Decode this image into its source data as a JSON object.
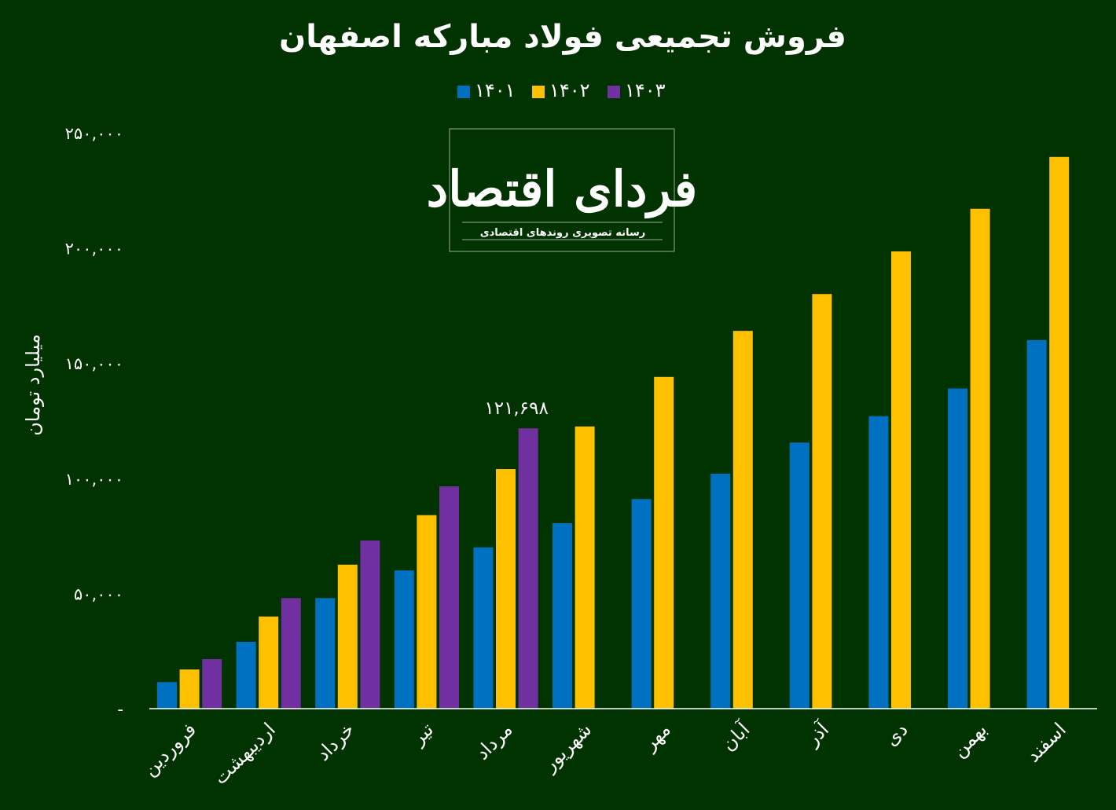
{
  "logo": {
    "name": "فردای اقتصاد",
    "tagline": "رسانه تصویری روندهای اقتصادی"
  },
  "chart_data": {
    "type": "bar",
    "title": "فروش تجمیعی فولاد مبارکه اصفهان",
    "ylabel": "میلیارد تومان",
    "xlabel": "",
    "ylim": [
      0,
      250000
    ],
    "yticks": [
      0,
      50000,
      100000,
      150000,
      200000,
      250000
    ],
    "ytick_labels": [
      "-",
      "۵۰,۰۰۰",
      "۱۰۰,۰۰۰",
      "۱۵۰,۰۰۰",
      "۲۰۰,۰۰۰",
      "۲۵۰,۰۰۰"
    ],
    "legend_position": "top-center",
    "grid": false,
    "categories": [
      "فروردین",
      "اردیبهشت",
      "خرداد",
      "تیر",
      "مرداد",
      "شهریور",
      "مهر",
      "آبان",
      "آذر",
      "دی",
      "بهمن",
      "اسفند"
    ],
    "series": [
      {
        "name": "۱۴۰۱",
        "color": "#0070C0",
        "values": [
          11500,
          29000,
          48000,
          60000,
          70000,
          80500,
          91000,
          102000,
          115500,
          127000,
          139000,
          160000
        ]
      },
      {
        "name": "۱۴۰۲",
        "color": "#FFC000",
        "values": [
          17000,
          40000,
          62500,
          84000,
          104000,
          122500,
          144000,
          164000,
          180000,
          198500,
          217000,
          239500
        ]
      },
      {
        "name": "۱۴۰۳",
        "color": "#7030A0",
        "values": [
          21500,
          48000,
          73000,
          96500,
          121698,
          null,
          null,
          null,
          null,
          null,
          null,
          null
        ]
      }
    ],
    "annotations": [
      {
        "series": 2,
        "index": 4,
        "text": "۱۲۱,۶۹۸"
      }
    ]
  }
}
